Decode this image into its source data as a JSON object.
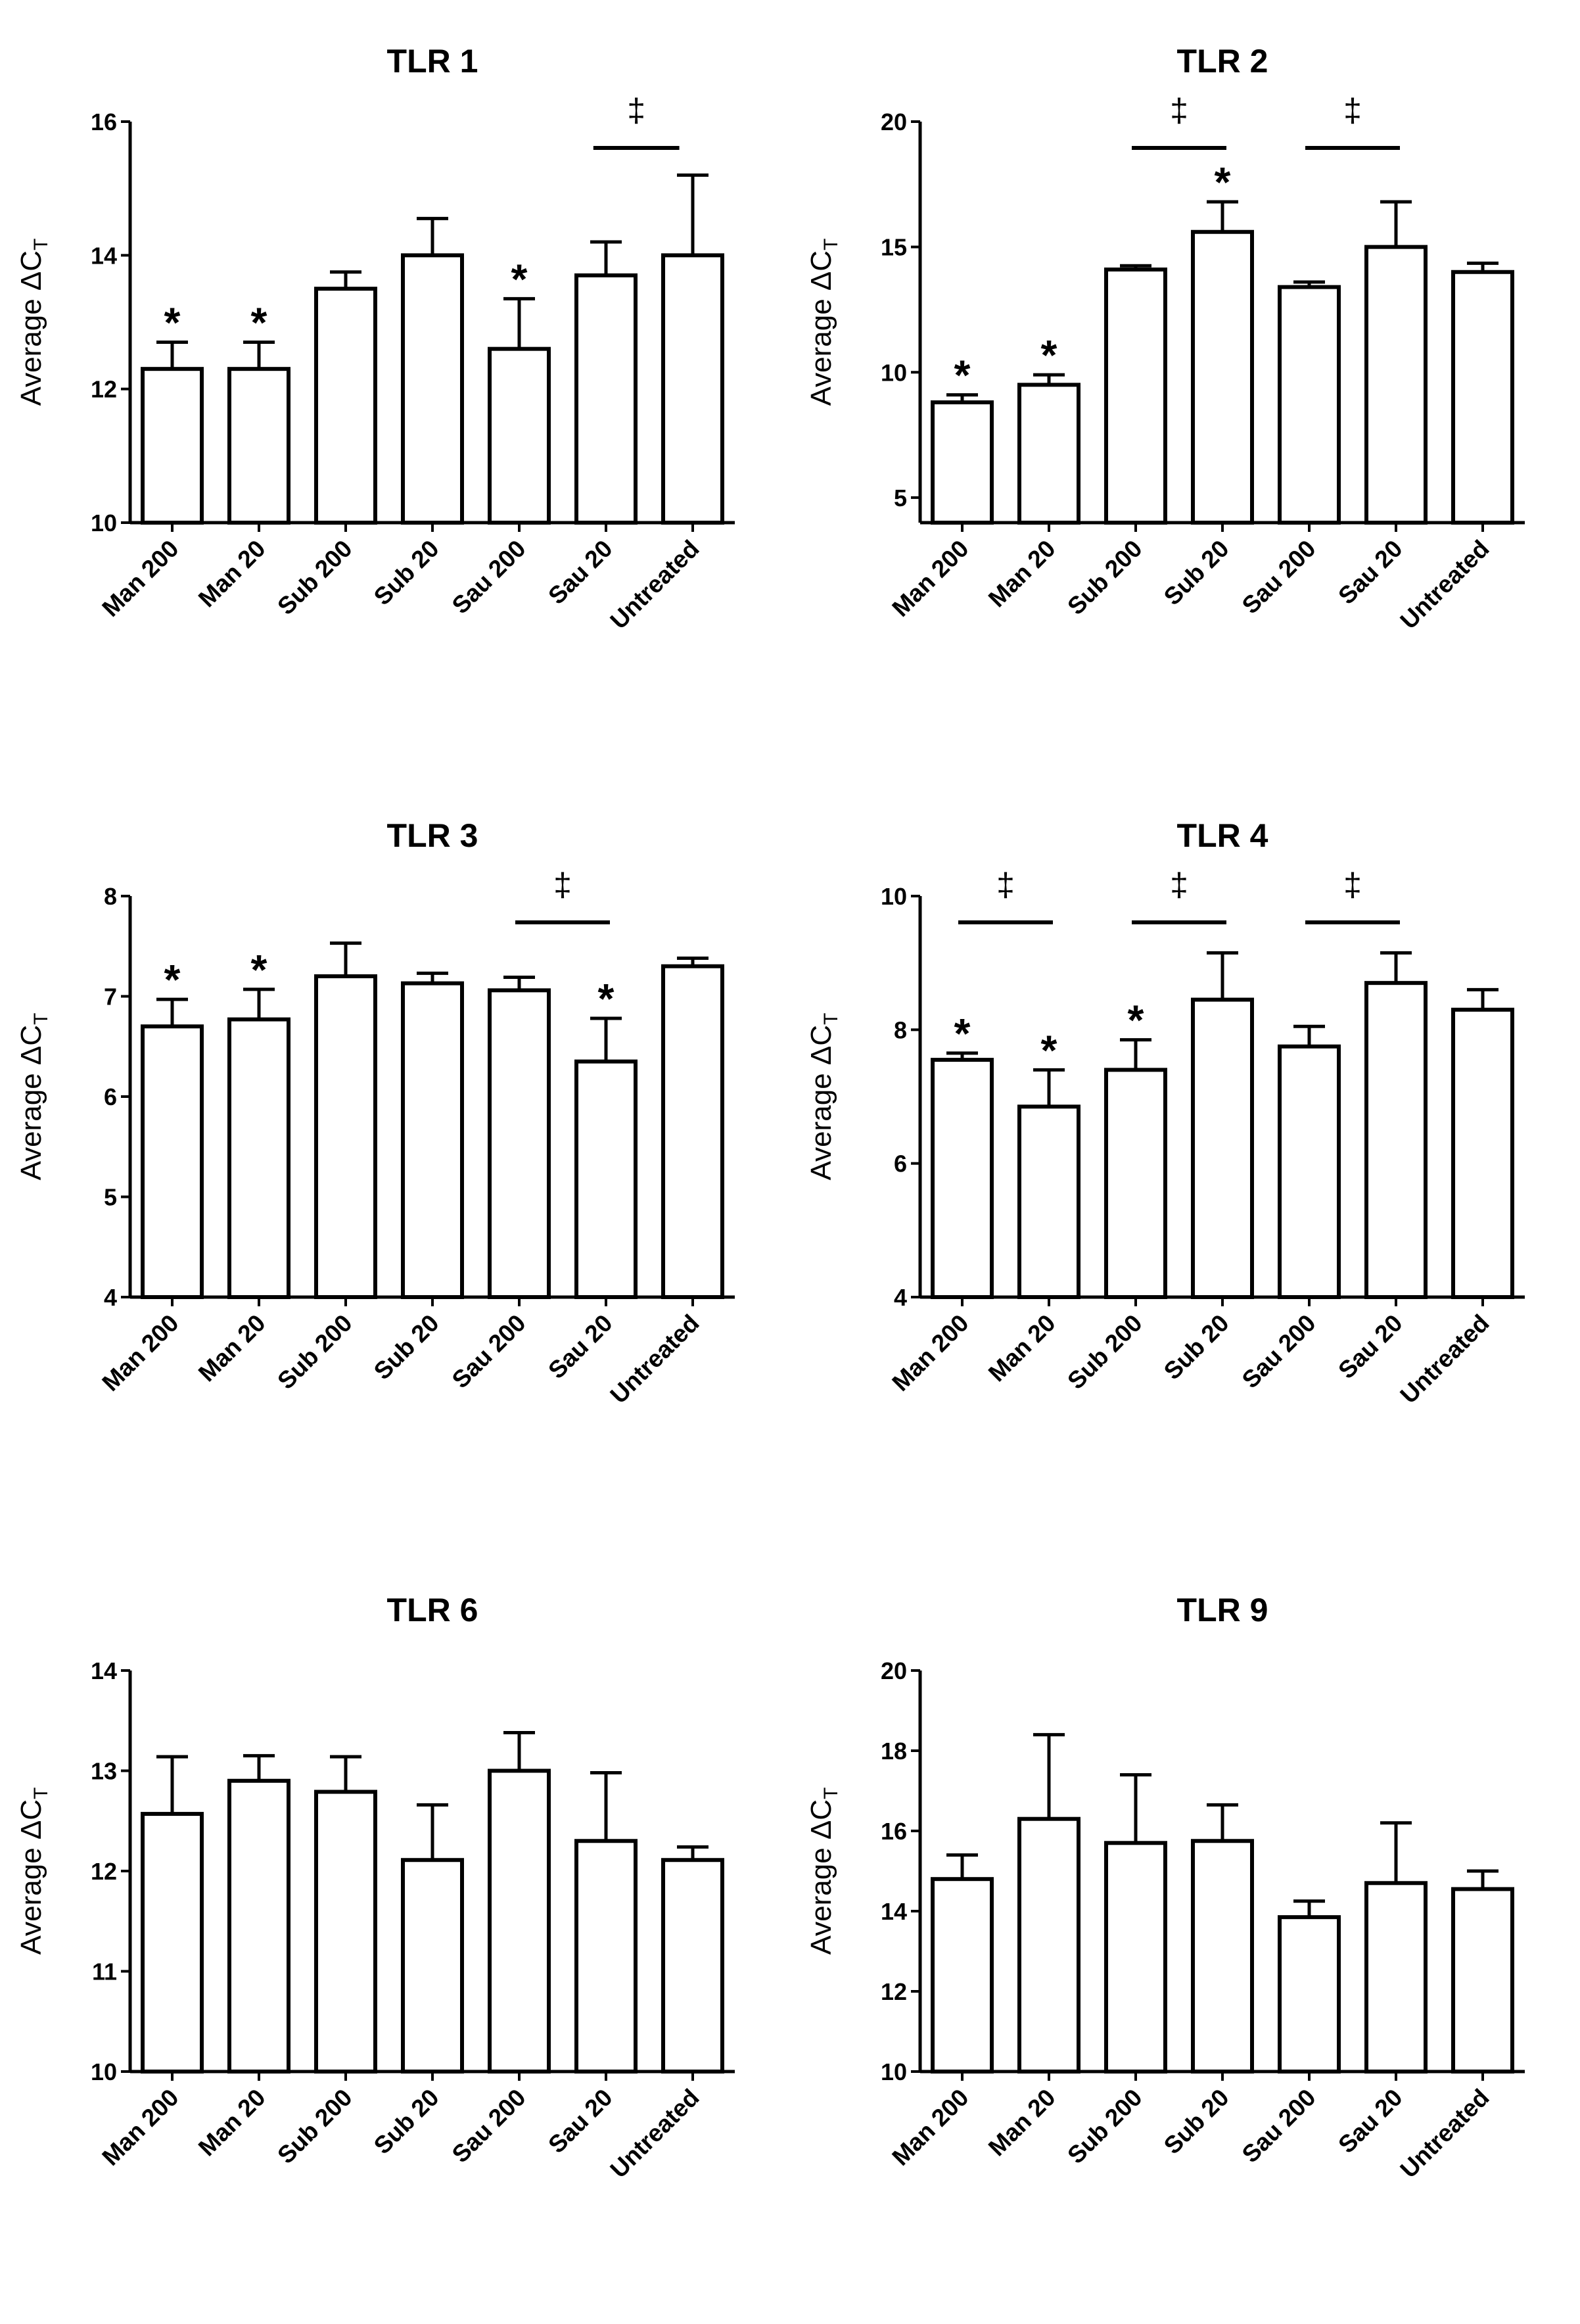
{
  "figure": {
    "ylabel": "Average ΔC",
    "ylabel_sub": "T",
    "sig_star": "*",
    "sig_bracket": "‡"
  },
  "chart_data": [
    {
      "type": "bar",
      "title": "TLR 1",
      "categories": [
        "Man 200",
        "Man 20",
        "Sub 200",
        "Sub 20",
        "Sau 200",
        "Sau 20",
        "Untreated"
      ],
      "values": [
        12.3,
        12.3,
        13.5,
        14.0,
        12.6,
        13.7,
        14.0
      ],
      "errors": [
        0.4,
        0.4,
        0.25,
        0.55,
        0.75,
        0.5,
        1.2
      ],
      "ylim": [
        10,
        16
      ],
      "yticks": [
        "10",
        "12",
        "14",
        "16"
      ],
      "star_indices": [
        0,
        1,
        4
      ],
      "brackets": [
        [
          4.9,
          5.8
        ]
      ]
    },
    {
      "type": "bar",
      "title": "TLR 2",
      "categories": [
        "Man 200",
        "Man 20",
        "Sub 200",
        "Sub 20",
        "Sau 200",
        "Sau 20",
        "Untreated"
      ],
      "values": [
        8.8,
        9.5,
        14.1,
        15.6,
        13.4,
        15.0,
        14.0
      ],
      "errors": [
        0.3,
        0.4,
        0.15,
        1.2,
        0.2,
        1.8,
        0.35
      ],
      "ylim": [
        4,
        20
      ],
      "yticks": [
        "5",
        "10",
        "15",
        "20"
      ],
      "star_indices": [
        0,
        1,
        3
      ],
      "brackets": [
        [
          2.0,
          3.0
        ],
        [
          4.0,
          5.0
        ]
      ]
    },
    {
      "type": "bar",
      "title": "TLR 3",
      "categories": [
        "Man 200",
        "Man 20",
        "Sub 200",
        "Sub 20",
        "Sau 200",
        "Sau 20",
        "Untreated"
      ],
      "values": [
        6.7,
        6.77,
        7.2,
        7.13,
        7.06,
        6.35,
        7.3
      ],
      "errors": [
        0.27,
        0.3,
        0.33,
        0.1,
        0.13,
        0.43,
        0.08
      ],
      "ylim": [
        4,
        8
      ],
      "yticks": [
        "4",
        "5",
        "6",
        "7",
        "8"
      ],
      "star_indices": [
        0,
        1,
        5
      ],
      "brackets": [
        [
          4.0,
          5.0
        ]
      ]
    },
    {
      "type": "bar",
      "title": "TLR 4",
      "categories": [
        "Man 200",
        "Man 20",
        "Sub 200",
        "Sub 20",
        "Sau 200",
        "Sau 20",
        "Untreated"
      ],
      "values": [
        7.55,
        6.85,
        7.4,
        8.45,
        7.75,
        8.7,
        8.3
      ],
      "errors": [
        0.1,
        0.55,
        0.45,
        0.7,
        0.3,
        0.45,
        0.3
      ],
      "ylim": [
        4,
        10
      ],
      "yticks": [
        "4",
        "6",
        "8",
        "10"
      ],
      "star_indices": [
        0,
        1,
        2
      ],
      "brackets": [
        [
          0.0,
          1.0
        ],
        [
          2.0,
          3.0
        ],
        [
          4.0,
          5.0
        ]
      ]
    },
    {
      "type": "bar",
      "title": "TLR 6",
      "categories": [
        "Man 200",
        "Man 20",
        "Sub 200",
        "Sub 20",
        "Sau 200",
        "Sau 20",
        "Untreated"
      ],
      "values": [
        12.57,
        12.9,
        12.79,
        12.11,
        13.0,
        12.3,
        12.11
      ],
      "errors": [
        0.57,
        0.25,
        0.35,
        0.55,
        0.38,
        0.68,
        0.13
      ],
      "ylim": [
        10,
        14
      ],
      "yticks": [
        "10",
        "11",
        "12",
        "13",
        "14"
      ],
      "star_indices": [],
      "brackets": []
    },
    {
      "type": "bar",
      "title": "TLR 9",
      "categories": [
        "Man 200",
        "Man 20",
        "Sub 200",
        "Sub 20",
        "Sau 200",
        "Sau 20",
        "Untreated"
      ],
      "values": [
        14.8,
        16.3,
        15.7,
        15.75,
        13.85,
        14.7,
        14.55
      ],
      "errors": [
        0.6,
        2.1,
        1.7,
        0.9,
        0.4,
        1.5,
        0.45
      ],
      "ylim": [
        10,
        20
      ],
      "yticks": [
        "10",
        "12",
        "14",
        "16",
        "18",
        "20"
      ],
      "star_indices": [],
      "brackets": []
    }
  ]
}
